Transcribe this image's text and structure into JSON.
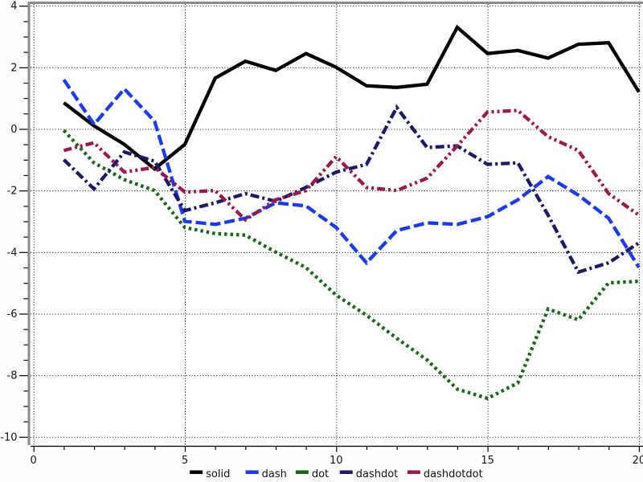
{
  "chart_data": {
    "type": "line",
    "title": "",
    "xlabel": "",
    "ylabel": "",
    "x": [
      1,
      2,
      3,
      4,
      5,
      6,
      7,
      8,
      9,
      10,
      11,
      12,
      13,
      14,
      15,
      16,
      17,
      18,
      19,
      20
    ],
    "series": [
      {
        "name": "solid",
        "line_style": "solid",
        "color": "#000000",
        "values": [
          0.85,
          0.1,
          -0.5,
          -1.3,
          -0.5,
          1.65,
          2.2,
          1.9,
          2.45,
          2.0,
          1.4,
          1.35,
          1.45,
          3.3,
          2.45,
          2.55,
          2.3,
          2.75,
          2.8,
          1.2
        ]
      },
      {
        "name": "dash",
        "line_style": "dash",
        "color": "#1a3af2",
        "values": [
          1.6,
          0.15,
          1.3,
          0.25,
          -3.0,
          -3.1,
          -2.9,
          -2.4,
          -2.5,
          -3.2,
          -4.35,
          -3.3,
          -3.05,
          -3.1,
          -2.85,
          -2.3,
          -1.55,
          -2.15,
          -2.9,
          -4.5
        ]
      },
      {
        "name": "dot",
        "line_style": "dot",
        "color": "#1a661a",
        "values": [
          -0.05,
          -1.1,
          -1.65,
          -2.0,
          -3.2,
          -3.4,
          -3.45,
          -4.0,
          -4.5,
          -5.4,
          -6.05,
          -6.8,
          -7.5,
          -8.45,
          -8.75,
          -8.25,
          -5.85,
          -6.2,
          -5.0,
          -4.95
        ]
      },
      {
        "name": "dashdot",
        "line_style": "dashdot",
        "color": "#1a1a66",
        "values": [
          -1.0,
          -1.95,
          -0.75,
          -1.05,
          -2.65,
          -2.4,
          -2.1,
          -2.35,
          -1.9,
          -1.4,
          -1.15,
          0.7,
          -0.6,
          -0.55,
          -1.15,
          -1.1,
          -2.8,
          -4.65,
          -4.35,
          -3.7
        ]
      },
      {
        "name": "dashdotdot",
        "line_style": "dashdotdot",
        "color": "#99194d",
        "values": [
          -0.7,
          -0.45,
          -1.4,
          -1.25,
          -2.05,
          -2.0,
          -2.95,
          -2.3,
          -2.0,
          -0.9,
          -1.9,
          -2.0,
          -1.6,
          -0.55,
          0.55,
          0.6,
          -0.25,
          -0.7,
          -2.1,
          -2.8
        ]
      }
    ],
    "xlim": [
      0,
      20
    ],
    "ylim": [
      -10,
      4
    ],
    "x_tick_labels": [
      "0",
      "5",
      "10",
      "15",
      "20"
    ],
    "x_ticks": [
      0,
      5,
      10,
      15,
      20
    ],
    "x_minor_step": 1,
    "y_tick_labels": [
      "4",
      "2",
      "0",
      "-2",
      "-4",
      "-6",
      "-8",
      "-10"
    ],
    "y_ticks": [
      4,
      2,
      0,
      -2,
      -4,
      -6,
      -8,
      -10
    ],
    "y_minor_step": 0.5,
    "grid": "dotted",
    "legend_position": "bottom-center",
    "legend": [
      "solid",
      "dash",
      "dot",
      "dashdot",
      "dashdotdot"
    ]
  },
  "frame": {
    "page_bg": "#fdfdfd",
    "plot_bg": "#ffffff",
    "border_color": "#8a8a8a",
    "axis_color": "#000000",
    "grid_color": "#000000",
    "label_color": "#1a1a1a"
  }
}
